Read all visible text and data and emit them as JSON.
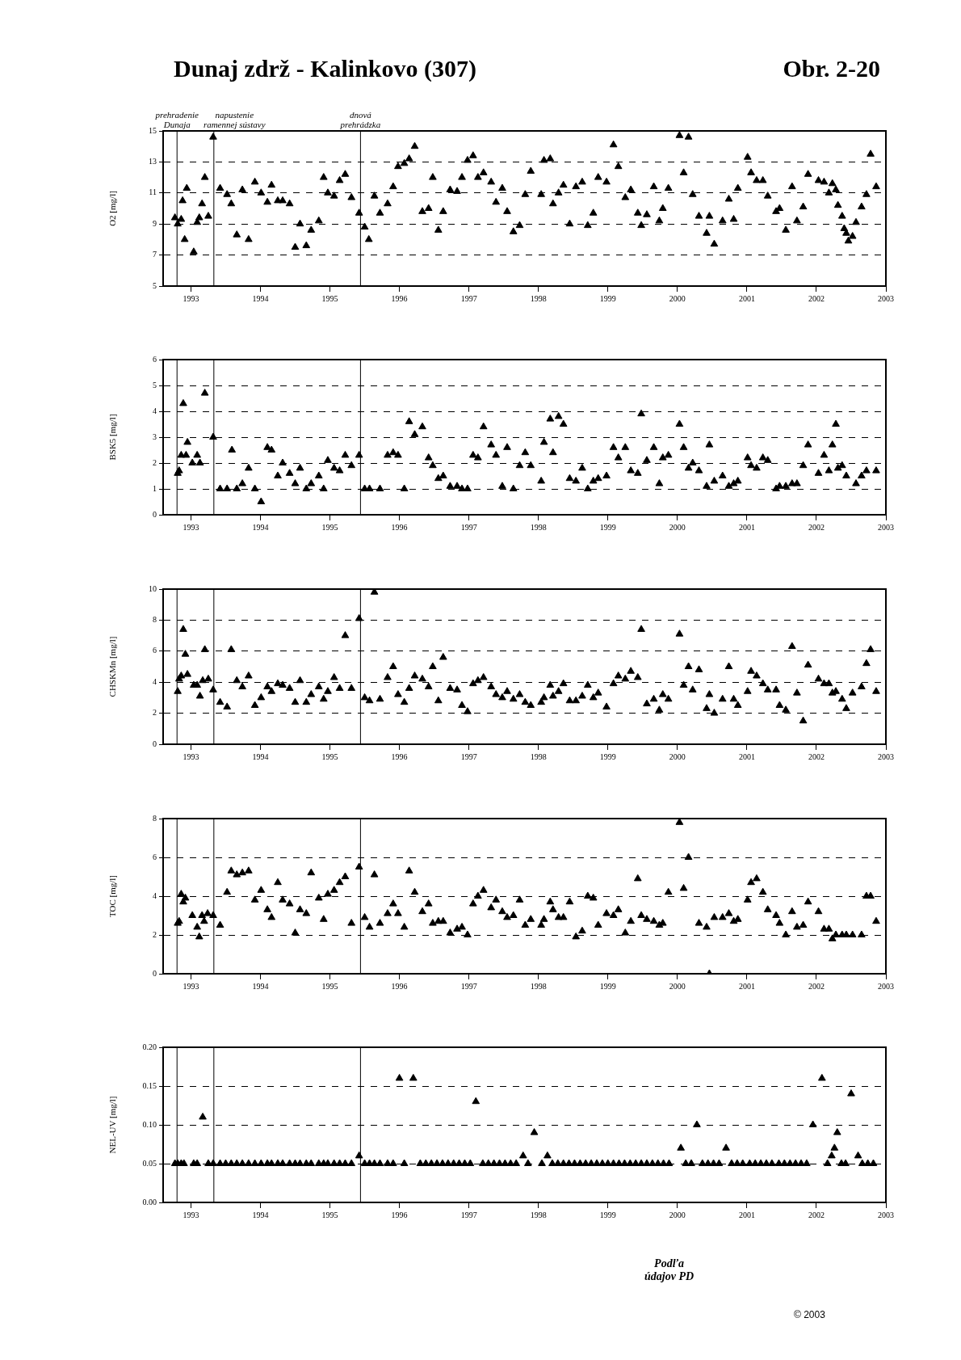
{
  "chart_data": [
    {
      "type": "scatter",
      "title": "Dunaj zdrž - Kalinkovo (307)",
      "subtitle": "Obr. 2-20",
      "ylabel": "O2 [mg/l]",
      "marker": "triangle",
      "grid": "y",
      "xlim": [
        1992.6,
        2003
      ],
      "xticks": [
        1993,
        1994,
        1995,
        1996,
        1997,
        1998,
        1999,
        2000,
        2001,
        2002,
        2003
      ],
      "ylim": [
        5,
        15
      ],
      "yticks": [
        5,
        7,
        9,
        11,
        13,
        15
      ],
      "ref_lines": [
        {
          "axis": "x",
          "value": 1992.8,
          "label": "prehradenie\nDunaja"
        },
        {
          "axis": "x",
          "value": 1993.33,
          "label": "napustenie\nramennej sústavy"
        },
        {
          "axis": "x",
          "value": 1995.44,
          "label": "dnová\nprehrádzka"
        }
      ],
      "series": [
        {
          "color": "#000000",
          "x": [
            1992.77,
            1992.81,
            1992.86,
            1992.88,
            1992.91,
            1992.94,
            1993.04,
            1993.09,
            1993.12,
            1993.16,
            1993.2,
            1993.25,
            1993.32,
            1993.42,
            1993.52,
            1993.58,
            1993.66,
            1993.74,
            1993.83,
            1993.92,
            1994.01,
            1994.1,
            1994.16,
            1994.25,
            1994.32,
            1994.42,
            1994.5,
            1994.57,
            1994.66,
            1994.73,
            1994.84,
            1994.91,
            1994.97,
            1995.06,
            1995.14,
            1995.22,
            1995.31,
            1995.42,
            1995.5,
            1995.56,
            1995.64,
            1995.72,
            1995.83,
            1995.91,
            1995.98,
            1996.07,
            1996.14,
            1996.22,
            1996.33,
            1996.42,
            1996.48,
            1996.56,
            1996.63,
            1996.73,
            1996.83,
            1996.9,
            1996.98,
            1997.06,
            1997.13,
            1997.21,
            1997.32,
            1997.39,
            1997.48,
            1997.55,
            1997.64,
            1997.73,
            1997.81,
            1997.89,
            1998.04,
            1998.08,
            1998.17,
            1998.21,
            1998.29,
            1998.36,
            1998.45,
            1998.54,
            1998.63,
            1998.71,
            1998.79,
            1998.86,
            1998.98,
            1999.08,
            1999.15,
            1999.25,
            1999.33,
            1999.43,
            1999.48,
            1999.56,
            1999.66,
            1999.74,
            1999.79,
            1999.87,
            2000.03,
            2000.09,
            2000.16,
            2000.22,
            2000.31,
            2000.42,
            2000.46,
            2000.53,
            2000.65,
            2000.74,
            2000.81,
            2000.87,
            2001.01,
            2001.06,
            2001.14,
            2001.23,
            2001.3,
            2001.42,
            2001.47,
            2001.56,
            2001.65,
            2001.72,
            2001.81,
            2001.88,
            2002.03,
            2002.11,
            2002.18,
            2002.23,
            2002.28,
            2002.31,
            2002.37,
            2002.4,
            2002.43,
            2002.46,
            2002.52,
            2002.57,
            2002.65,
            2002.72,
            2002.78,
            2002.86
          ],
          "values": [
            9.4,
            9.0,
            9.3,
            10.5,
            8.0,
            11.3,
            7.2,
            9.1,
            9.4,
            10.3,
            12.0,
            9.5,
            14.6,
            11.3,
            10.9,
            10.3,
            8.3,
            11.2,
            8.0,
            11.7,
            11.0,
            10.4,
            11.5,
            10.5,
            10.5,
            10.3,
            7.5,
            9.0,
            7.6,
            8.6,
            9.2,
            12.0,
            11.0,
            10.8,
            11.8,
            12.2,
            10.7,
            9.7,
            8.8,
            8.0,
            10.8,
            9.7,
            10.3,
            11.4,
            12.7,
            12.9,
            13.2,
            14.0,
            9.8,
            10.0,
            12.0,
            8.6,
            9.8,
            11.2,
            11.1,
            12.0,
            13.1,
            13.4,
            12.0,
            12.3,
            11.7,
            10.4,
            11.3,
            9.8,
            8.5,
            8.9,
            10.9,
            12.4,
            10.9,
            13.1,
            13.2,
            10.3,
            11.0,
            11.5,
            9.0,
            11.4,
            11.7,
            8.9,
            9.7,
            12.0,
            11.7,
            14.1,
            12.7,
            10.7,
            11.2,
            9.7,
            8.9,
            9.6,
            11.4,
            9.2,
            10.0,
            11.3,
            14.7,
            12.3,
            14.6,
            10.9,
            9.5,
            8.4,
            9.5,
            7.7,
            9.2,
            10.6,
            9.3,
            11.3,
            13.3,
            12.3,
            11.8,
            11.8,
            10.8,
            9.8,
            10.0,
            8.6,
            11.4,
            9.2,
            10.1,
            12.2,
            11.8,
            11.7,
            11.0,
            11.6,
            11.2,
            10.2,
            9.5,
            8.7,
            8.4,
            7.9,
            8.2,
            9.1,
            10.1,
            10.9,
            13.5,
            11.4
          ]
        }
      ]
    },
    {
      "type": "scatter",
      "ylabel": "BSK5 [mg/l]",
      "marker": "triangle",
      "grid": "y",
      "xlim": [
        1992.6,
        2003
      ],
      "xticks": [
        1993,
        1994,
        1995,
        1996,
        1997,
        1998,
        1999,
        2000,
        2001,
        2002,
        2003
      ],
      "ylim": [
        0,
        6
      ],
      "yticks": [
        0,
        1,
        2,
        3,
        4,
        5,
        6
      ],
      "ref_lines": [
        {
          "axis": "x",
          "value": 1992.8
        },
        {
          "axis": "x",
          "value": 1993.33
        },
        {
          "axis": "x",
          "value": 1995.44
        }
      ],
      "series": [
        {
          "color": "#000000",
          "x": [
            1992.81,
            1992.83,
            1992.86,
            1992.89,
            1992.93,
            1992.95,
            1993.02,
            1993.09,
            1993.13,
            1993.2,
            1993.32,
            1993.42,
            1993.52,
            1993.59,
            1993.66,
            1993.74,
            1993.83,
            1993.92,
            1994.01,
            1994.1,
            1994.16,
            1994.25,
            1994.32,
            1994.42,
            1994.5,
            1994.57,
            1994.66,
            1994.73,
            1994.84,
            1994.91,
            1994.97,
            1995.06,
            1995.14,
            1995.22,
            1995.31,
            1995.42,
            1995.5,
            1995.57,
            1995.72,
            1995.83,
            1995.91,
            1995.98,
            1996.07,
            1996.14,
            1996.22,
            1996.33,
            1996.42,
            1996.48,
            1996.56,
            1996.63,
            1996.73,
            1996.83,
            1996.9,
            1996.98,
            1997.06,
            1997.13,
            1997.21,
            1997.32,
            1997.39,
            1997.48,
            1997.55,
            1997.64,
            1997.73,
            1997.81,
            1997.89,
            1998.04,
            1998.08,
            1998.17,
            1998.21,
            1998.29,
            1998.36,
            1998.45,
            1998.54,
            1998.63,
            1998.71,
            1998.79,
            1998.86,
            1998.98,
            1999.08,
            1999.15,
            1999.25,
            1999.33,
            1999.43,
            1999.48,
            1999.56,
            1999.66,
            1999.74,
            1999.79,
            1999.87,
            2000.03,
            2000.09,
            2000.16,
            2000.22,
            2000.31,
            2000.42,
            2000.46,
            2000.53,
            2000.65,
            2000.74,
            2000.81,
            2000.87,
            2001.01,
            2001.06,
            2001.14,
            2001.23,
            2001.3,
            2001.42,
            2001.47,
            2001.56,
            2001.65,
            2001.72,
            2001.81,
            2001.88,
            2002.03,
            2002.11,
            2002.18,
            2002.23,
            2002.28,
            2002.31,
            2002.37,
            2002.43,
            2002.57,
            2002.65,
            2002.72,
            2002.86
          ],
          "values": [
            1.6,
            1.7,
            2.3,
            4.3,
            2.3,
            2.8,
            2.0,
            2.3,
            2.0,
            4.7,
            3.0,
            1.0,
            1.0,
            2.5,
            1.0,
            1.2,
            1.8,
            1.0,
            0.5,
            2.6,
            2.5,
            1.5,
            2.0,
            1.6,
            1.2,
            1.8,
            1.0,
            1.2,
            1.5,
            1.0,
            2.1,
            1.8,
            1.7,
            2.3,
            1.9,
            2.3,
            1.0,
            1.0,
            1.0,
            2.3,
            2.4,
            2.3,
            1.0,
            3.6,
            3.1,
            3.4,
            2.2,
            1.9,
            1.4,
            1.5,
            1.1,
            1.1,
            1.0,
            1.0,
            2.3,
            2.2,
            3.4,
            2.7,
            2.3,
            1.1,
            2.6,
            1.0,
            1.9,
            2.4,
            1.9,
            1.3,
            2.8,
            3.7,
            2.4,
            3.8,
            3.5,
            1.4,
            1.3,
            1.8,
            1.0,
            1.3,
            1.4,
            1.5,
            2.6,
            2.2,
            2.6,
            1.7,
            1.6,
            3.9,
            2.1,
            2.6,
            1.2,
            2.2,
            2.3,
            3.5,
            2.6,
            1.8,
            2.0,
            1.7,
            1.1,
            2.7,
            1.3,
            1.5,
            1.1,
            1.2,
            1.3,
            2.2,
            1.9,
            1.8,
            2.2,
            2.1,
            1.0,
            1.1,
            1.1,
            1.2,
            1.2,
            1.9,
            2.7,
            1.6,
            2.3,
            1.7,
            2.7,
            3.5,
            1.8,
            1.9,
            1.5,
            1.2,
            1.5,
            1.7,
            1.7
          ]
        }
      ]
    },
    {
      "type": "scatter",
      "ylabel": "CHSKMn [mg/l]",
      "marker": "triangle",
      "grid": "y",
      "xlim": [
        1992.6,
        2003
      ],
      "xticks": [
        1993,
        1994,
        1995,
        1996,
        1997,
        1998,
        1999,
        2000,
        2001,
        2002,
        2003
      ],
      "ylim": [
        0,
        10
      ],
      "yticks": [
        0,
        2,
        4,
        6,
        8,
        10
      ],
      "ref_lines": [
        {
          "axis": "x",
          "value": 1992.8
        },
        {
          "axis": "x",
          "value": 1993.33
        },
        {
          "axis": "x",
          "value": 1995.44
        }
      ],
      "series": [
        {
          "color": "#000000",
          "x": [
            1992.81,
            1992.83,
            1992.86,
            1992.89,
            1992.92,
            1992.95,
            1993.04,
            1993.09,
            1993.13,
            1993.17,
            1993.2,
            1993.25,
            1993.32,
            1993.42,
            1993.52,
            1993.58,
            1993.66,
            1993.74,
            1993.83,
            1993.92,
            1994.01,
            1994.1,
            1994.16,
            1994.25,
            1994.32,
            1994.42,
            1994.5,
            1994.57,
            1994.66,
            1994.73,
            1994.84,
            1994.91,
            1994.97,
            1995.06,
            1995.14,
            1995.22,
            1995.31,
            1995.42,
            1995.5,
            1995.57,
            1995.64,
            1995.72,
            1995.83,
            1995.91,
            1995.98,
            1996.07,
            1996.14,
            1996.22,
            1996.33,
            1996.42,
            1996.48,
            1996.56,
            1996.63,
            1996.73,
            1996.83,
            1996.9,
            1996.98,
            1997.06,
            1997.13,
            1997.21,
            1997.32,
            1997.39,
            1997.48,
            1997.55,
            1997.64,
            1997.73,
            1997.81,
            1997.89,
            1998.04,
            1998.08,
            1998.17,
            1998.21,
            1998.29,
            1998.36,
            1998.45,
            1998.54,
            1998.63,
            1998.71,
            1998.79,
            1998.86,
            1998.98,
            1999.08,
            1999.15,
            1999.25,
            1999.33,
            1999.43,
            1999.48,
            1999.56,
            1999.66,
            1999.74,
            1999.79,
            1999.87,
            2000.03,
            2000.09,
            2000.16,
            2000.22,
            2000.31,
            2000.42,
            2000.46,
            2000.53,
            2000.65,
            2000.74,
            2000.81,
            2000.87,
            2001.01,
            2001.06,
            2001.14,
            2001.23,
            2001.3,
            2001.42,
            2001.47,
            2001.56,
            2001.65,
            2001.72,
            2001.81,
            2001.88,
            2002.03,
            2002.11,
            2002.18,
            2002.23,
            2002.28,
            2002.37,
            2002.43,
            2002.52,
            2002.65,
            2002.72,
            2002.78,
            2002.86
          ],
          "values": [
            3.4,
            4.2,
            4.4,
            7.4,
            5.8,
            4.5,
            3.8,
            3.8,
            3.1,
            4.1,
            6.1,
            4.2,
            3.5,
            2.7,
            2.4,
            6.1,
            4.1,
            3.7,
            4.4,
            2.5,
            3.0,
            3.7,
            3.4,
            3.9,
            3.8,
            3.6,
            2.7,
            4.1,
            2.7,
            3.2,
            3.7,
            2.9,
            3.4,
            4.3,
            3.6,
            7.0,
            3.6,
            8.1,
            3.0,
            2.8,
            9.8,
            2.9,
            4.3,
            5.0,
            3.2,
            2.7,
            3.6,
            4.4,
            4.2,
            3.7,
            5.0,
            2.8,
            5.6,
            3.6,
            3.5,
            2.5,
            2.1,
            3.9,
            4.1,
            4.3,
            3.7,
            3.2,
            3.0,
            3.4,
            2.9,
            3.2,
            2.7,
            2.5,
            2.7,
            3.0,
            3.8,
            3.1,
            3.4,
            3.9,
            2.8,
            2.8,
            3.1,
            3.8,
            3.0,
            3.3,
            2.4,
            3.9,
            4.4,
            4.2,
            4.7,
            4.3,
            7.4,
            2.6,
            2.9,
            2.2,
            3.2,
            2.9,
            7.1,
            3.8,
            5.0,
            3.5,
            4.8,
            2.3,
            3.2,
            2.0,
            2.9,
            5.0,
            2.9,
            2.5,
            3.4,
            4.7,
            4.4,
            3.9,
            3.5,
            3.5,
            2.5,
            2.2,
            6.3,
            3.3,
            1.5,
            5.1,
            4.2,
            3.9,
            3.9,
            3.3,
            3.4,
            2.9,
            2.3,
            3.3,
            3.7,
            5.2,
            6.1,
            3.4
          ]
        }
      ]
    },
    {
      "type": "scatter",
      "ylabel": "TOC [mg/l]",
      "marker": "triangle",
      "grid": "y",
      "xlim": [
        1992.6,
        2003
      ],
      "xticks": [
        1993,
        1994,
        1995,
        1996,
        1997,
        1998,
        1999,
        2000,
        2001,
        2002,
        2003
      ],
      "ylim": [
        0,
        8
      ],
      "yticks": [
        0,
        2,
        4,
        6,
        8
      ],
      "ref_lines": [
        {
          "axis": "x",
          "value": 1992.8
        },
        {
          "axis": "x",
          "value": 1993.33
        },
        {
          "axis": "x",
          "value": 1995.44
        }
      ],
      "series": [
        {
          "color": "#000000",
          "x": [
            1992.81,
            1992.83,
            1992.86,
            1992.89,
            1992.92,
            1993.02,
            1993.09,
            1993.12,
            1993.16,
            1993.19,
            1993.24,
            1993.32,
            1993.42,
            1993.52,
            1993.58,
            1993.66,
            1993.74,
            1993.83,
            1993.92,
            1994.01,
            1994.1,
            1994.16,
            1994.25,
            1994.32,
            1994.42,
            1994.5,
            1994.57,
            1994.66,
            1994.73,
            1994.84,
            1994.91,
            1994.97,
            1995.06,
            1995.14,
            1995.22,
            1995.31,
            1995.42,
            1995.5,
            1995.57,
            1995.64,
            1995.72,
            1995.83,
            1995.91,
            1995.98,
            1996.07,
            1996.14,
            1996.22,
            1996.33,
            1996.42,
            1996.48,
            1996.56,
            1996.63,
            1996.73,
            1996.83,
            1996.9,
            1996.98,
            1997.06,
            1997.13,
            1997.21,
            1997.32,
            1997.39,
            1997.48,
            1997.55,
            1997.64,
            1997.73,
            1997.81,
            1997.89,
            1998.04,
            1998.08,
            1998.17,
            1998.21,
            1998.29,
            1998.36,
            1998.45,
            1998.54,
            1998.63,
            1998.71,
            1998.79,
            1998.86,
            1998.98,
            1999.08,
            1999.15,
            1999.25,
            1999.33,
            1999.43,
            1999.48,
            1999.56,
            1999.66,
            1999.74,
            1999.79,
            1999.87,
            2000.03,
            2000.09,
            2000.16,
            2000.31,
            2000.42,
            2000.46,
            2000.53,
            2000.65,
            2000.74,
            2000.81,
            2000.87,
            2001.01,
            2001.06,
            2001.14,
            2001.23,
            2001.3,
            2001.42,
            2001.47,
            2001.56,
            2001.65,
            2001.72,
            2001.81,
            2001.88,
            2002.03,
            2002.11,
            2002.18,
            2002.23,
            2002.28,
            2002.37,
            2002.43,
            2002.52,
            2002.65,
            2002.72,
            2002.78,
            2002.86
          ],
          "values": [
            2.6,
            2.7,
            4.1,
            3.7,
            3.9,
            3.0,
            2.4,
            1.9,
            3.0,
            2.7,
            3.1,
            3.0,
            2.5,
            4.2,
            5.3,
            5.1,
            5.2,
            5.3,
            3.8,
            4.3,
            3.3,
            2.9,
            4.7,
            3.8,
            3.6,
            2.1,
            3.3,
            3.1,
            5.2,
            3.9,
            2.8,
            4.1,
            4.3,
            4.7,
            5.0,
            2.6,
            5.5,
            2.9,
            2.4,
            5.1,
            2.6,
            3.1,
            3.6,
            3.1,
            2.4,
            5.3,
            4.2,
            3.2,
            3.6,
            2.6,
            2.7,
            2.7,
            2.1,
            2.3,
            2.4,
            2.0,
            3.6,
            4.0,
            4.3,
            3.4,
            3.8,
            3.2,
            2.9,
            3.0,
            3.8,
            2.5,
            2.8,
            2.5,
            2.8,
            3.7,
            3.3,
            2.9,
            2.9,
            3.7,
            1.9,
            2.2,
            4.0,
            3.9,
            2.5,
            3.1,
            3.0,
            3.3,
            2.1,
            2.7,
            4.9,
            3.0,
            2.8,
            2.7,
            2.5,
            2.6,
            4.2,
            7.8,
            4.4,
            6.0,
            2.6,
            2.4,
            0.0,
            2.9,
            2.9,
            3.1,
            2.7,
            2.8,
            3.8,
            4.7,
            4.9,
            4.2,
            3.3,
            3.0,
            2.6,
            2.0,
            3.2,
            2.4,
            2.5,
            3.7,
            3.2,
            2.3,
            2.3,
            1.8,
            2.0,
            2.0,
            2.0,
            2.0,
            2.0,
            4.0,
            4.0,
            2.7
          ]
        }
      ]
    },
    {
      "type": "scatter",
      "ylabel": "NEL-UV [mg/l]",
      "marker": "triangle",
      "grid": "y",
      "xlim": [
        1992.6,
        2003
      ],
      "xticks": [
        1993,
        1994,
        1995,
        1996,
        1997,
        1998,
        1999,
        2000,
        2001,
        2002,
        2003
      ],
      "ylim": [
        0,
        0.2
      ],
      "yticks": [
        {
          "value": 0,
          "label": "0.00"
        },
        {
          "value": 0.05,
          "label": "0.05"
        },
        {
          "value": 0.1,
          "label": "0.10"
        },
        {
          "value": 0.15,
          "label": "0.15"
        },
        {
          "value": 0.2,
          "label": "0.20"
        }
      ],
      "ref_lines": [
        {
          "axis": "x",
          "value": 1992.8
        },
        {
          "axis": "x",
          "value": 1993.33
        },
        {
          "axis": "x",
          "value": 1995.44
        }
      ],
      "annotations": [
        "Podľa\núdajov PD",
        "© 2003"
      ],
      "series": [
        {
          "color": "#000000",
          "x": [
            1992.77,
            1992.81,
            1992.86,
            1992.9,
            1993.04,
            1993.09,
            1993.17,
            1993.25,
            1993.32,
            1993.42,
            1993.5,
            1993.58,
            1993.66,
            1993.74,
            1993.83,
            1993.92,
            1994.01,
            1994.1,
            1994.16,
            1994.25,
            1994.32,
            1994.42,
            1994.5,
            1994.57,
            1994.66,
            1994.73,
            1994.84,
            1994.91,
            1994.97,
            1995.06,
            1995.14,
            1995.22,
            1995.31,
            1995.42,
            1995.5,
            1995.57,
            1995.64,
            1995.72,
            1995.83,
            1995.91,
            1996.0,
            1996.07,
            1996.2,
            1996.3,
            1996.38,
            1996.46,
            1996.54,
            1996.62,
            1996.7,
            1996.78,
            1996.86,
            1996.94,
            1997.02,
            1997.1,
            1997.2,
            1997.28,
            1997.36,
            1997.44,
            1997.52,
            1997.6,
            1997.68,
            1997.78,
            1997.85,
            1997.94,
            1998.05,
            1998.13,
            1998.2,
            1998.28,
            1998.36,
            1998.44,
            1998.52,
            1998.6,
            1998.68,
            1998.76,
            1998.84,
            1998.92,
            1999.0,
            1999.08,
            1999.16,
            1999.24,
            1999.32,
            1999.4,
            1999.48,
            1999.56,
            1999.64,
            1999.72,
            1999.8,
            1999.88,
            2000.05,
            2000.12,
            2000.2,
            2000.28,
            2000.36,
            2000.44,
            2000.52,
            2000.6,
            2000.7,
            2000.78,
            2000.86,
            2000.94,
            2001.04,
            2001.12,
            2001.2,
            2001.28,
            2001.36,
            2001.46,
            2001.54,
            2001.62,
            2001.7,
            2001.78,
            2001.86,
            2001.95,
            2002.08,
            2002.16,
            2002.22,
            2002.26,
            2002.3,
            2002.36,
            2002.42,
            2002.5,
            2002.6,
            2002.66,
            2002.74,
            2002.82
          ],
          "values": [
            0.05,
            0.05,
            0.05,
            0.05,
            0.05,
            0.05,
            0.11,
            0.05,
            0.05,
            0.05,
            0.05,
            0.05,
            0.05,
            0.05,
            0.05,
            0.05,
            0.05,
            0.05,
            0.05,
            0.05,
            0.05,
            0.05,
            0.05,
            0.05,
            0.05,
            0.05,
            0.05,
            0.05,
            0.05,
            0.05,
            0.05,
            0.05,
            0.05,
            0.06,
            0.05,
            0.05,
            0.05,
            0.05,
            0.05,
            0.05,
            0.16,
            0.05,
            0.16,
            0.05,
            0.05,
            0.05,
            0.05,
            0.05,
            0.05,
            0.05,
            0.05,
            0.05,
            0.05,
            0.13,
            0.05,
            0.05,
            0.05,
            0.05,
            0.05,
            0.05,
            0.05,
            0.06,
            0.05,
            0.09,
            0.05,
            0.06,
            0.05,
            0.05,
            0.05,
            0.05,
            0.05,
            0.05,
            0.05,
            0.05,
            0.05,
            0.05,
            0.05,
            0.05,
            0.05,
            0.05,
            0.05,
            0.05,
            0.05,
            0.05,
            0.05,
            0.05,
            0.05,
            0.05,
            0.07,
            0.05,
            0.05,
            0.1,
            0.05,
            0.05,
            0.05,
            0.05,
            0.07,
            0.05,
            0.05,
            0.05,
            0.05,
            0.05,
            0.05,
            0.05,
            0.05,
            0.05,
            0.05,
            0.05,
            0.05,
            0.05,
            0.05,
            0.1,
            0.16,
            0.05,
            0.06,
            0.07,
            0.09,
            0.05,
            0.05,
            0.14,
            0.06,
            0.05,
            0.05,
            0.05
          ]
        }
      ]
    }
  ]
}
